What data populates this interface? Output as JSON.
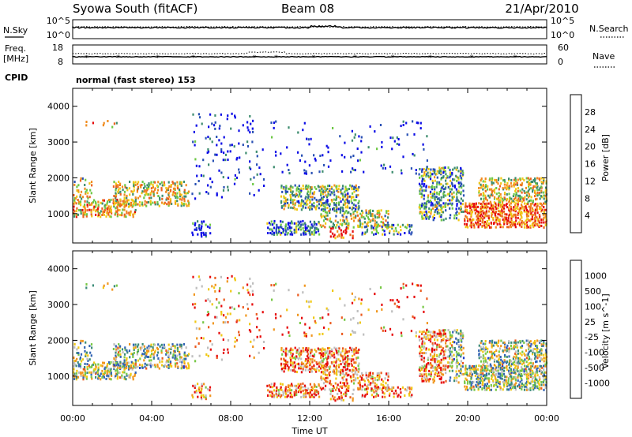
{
  "header": {
    "station": "Syowa South (fitACF)",
    "beam": "Beam 08",
    "date": "21/Apr/2010"
  },
  "status": {
    "nsky_label": "N.Sky",
    "nsearch_label": "N.Search",
    "freq_label_1": "Freq.",
    "freq_label_2": "[MHz]",
    "nave_label": "Nave",
    "cpid_label": "CPID",
    "cpid_text": "normal (fast stereo) 153",
    "noise_ticks_left": [
      "10^5",
      "10^0"
    ],
    "noise_ticks_right": [
      "10^5",
      "10^0"
    ],
    "freq_ticks": [
      "18",
      "8"
    ],
    "nave_ticks": [
      "60",
      "0"
    ]
  },
  "chart_data": [
    {
      "type": "heatmap",
      "name": "power",
      "ylabel": "Slant Range [km]",
      "xlabel": "",
      "x_ticks": [
        "00:00",
        "04:00",
        "08:00",
        "12:00",
        "16:00",
        "20:00",
        "00:00"
      ],
      "x_range_hours": [
        0,
        24
      ],
      "y_ticks": [
        1000,
        2000,
        3000,
        4000
      ],
      "ylim": [
        180,
        4500
      ],
      "colorbar": {
        "label": "Power [dB]",
        "ticks": [
          "4",
          "8",
          "12",
          "16",
          "20",
          "24",
          "28"
        ],
        "colors": [
          "#0a0ae6",
          "#2850b4",
          "#3c8c6e",
          "#6ec846",
          "#f0c814",
          "#f08c1e",
          "#eb641e",
          "#e60a0a"
        ]
      }
    },
    {
      "type": "heatmap",
      "name": "velocity",
      "ylabel": "Slant Range [km]",
      "xlabel": "Time UT",
      "x_ticks": [
        "00:00",
        "04:00",
        "08:00",
        "12:00",
        "16:00",
        "20:00",
        "00:00"
      ],
      "x_range_hours": [
        0,
        24
      ],
      "y_ticks": [
        1000,
        2000,
        3000,
        4000
      ],
      "ylim": [
        180,
        4500
      ],
      "colorbar": {
        "label": "Velocity [m s^-1]",
        "ticks": [
          "1000",
          "500",
          "100",
          "25",
          "-25",
          "-100",
          "-500",
          "-1000"
        ],
        "colors": [
          "#1e3cc8",
          "#3264b4",
          "#3c8c78",
          "#78c846",
          "#bebebe",
          "#f0c814",
          "#f0961e",
          "#eb5a1e",
          "#e60a0a"
        ]
      }
    }
  ],
  "palette": {
    "power": [
      "#0a0ae6",
      "#2850b4",
      "#3c8c6e",
      "#6ec846",
      "#f0c814",
      "#f08c1e",
      "#eb641e",
      "#e60a0a"
    ],
    "velocity": [
      "#1e3cc8",
      "#3264b4",
      "#3c8c78",
      "#78c846",
      "#bebebe",
      "#f0c814",
      "#f0961e",
      "#eb5a1e",
      "#e60a0a"
    ]
  }
}
